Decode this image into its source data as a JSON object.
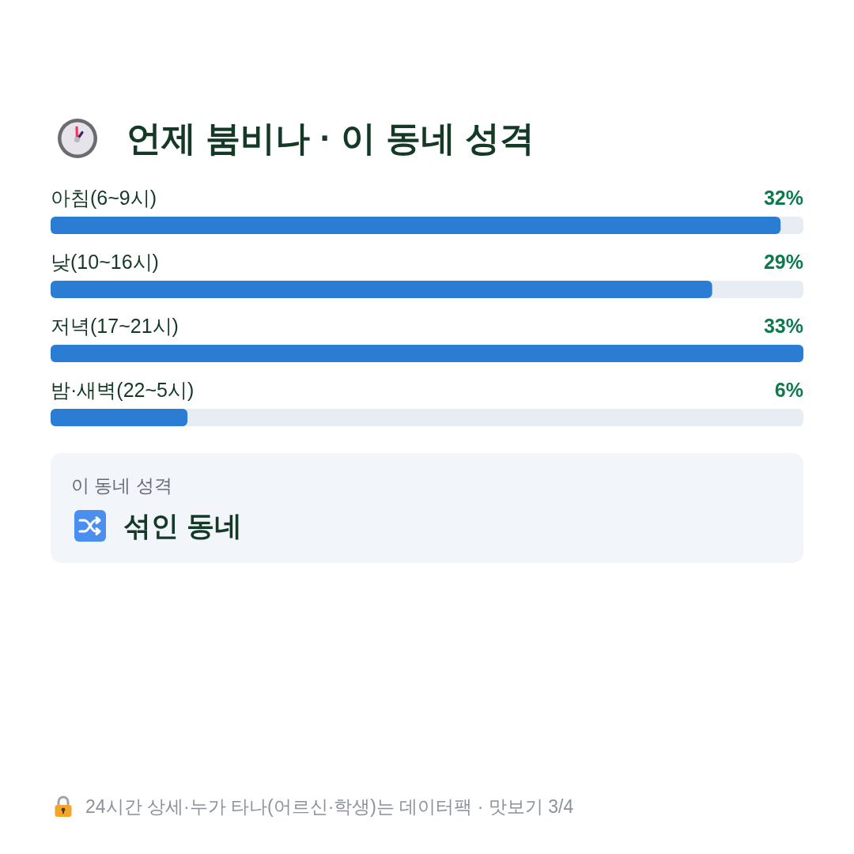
{
  "chart_data": [
    {
      "type": "bar",
      "orientation": "horizontal",
      "title": "언제 붐비나 · 이 동네 성격",
      "categories": [
        "아침(6~9시)",
        "낮(10~16시)",
        "저녁(17~21시)",
        "밤·새벽(22~5시)"
      ],
      "values": [
        32,
        29,
        33,
        6
      ],
      "value_labels": [
        "32%",
        "29%",
        "33%",
        "6%"
      ],
      "color": "#2b7cd3",
      "tick_labels": "y"
    },
    {
      "type": "other",
      "title": "이 동네 성격",
      "subtitle": "섞인 동네",
      "annotations": [
        "24시간 상세·누가 타나(어르신·학생)는 데이터팩 · 맛보기 3/4"
      ]
    }
  ]
}
